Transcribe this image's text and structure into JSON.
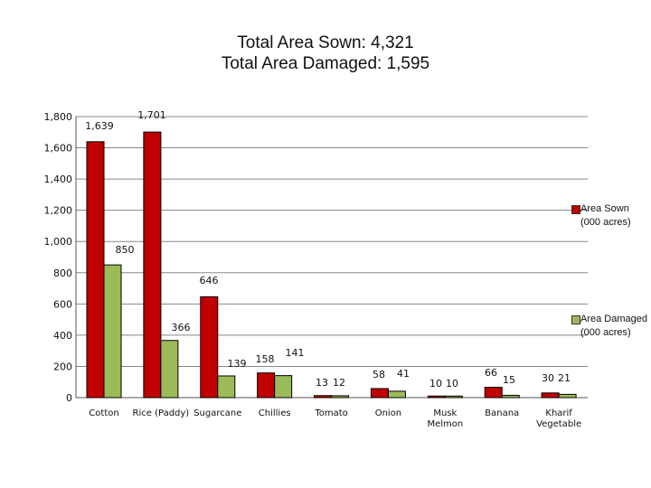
{
  "chart_data": {
    "type": "bar",
    "title_line1": "Total Area Sown: 4,321",
    "title_line2": "Total Area Damaged: 1,595",
    "categories": [
      "Cotton",
      "Rice (Paddy)",
      "Sugarcane",
      "Chillies",
      "Tomato",
      "Onion",
      "Musk Melmon",
      "Banana",
      "Kharif Vegetable"
    ],
    "series": [
      {
        "name": "Area Sown (000 acres)",
        "color": "#c00000",
        "values": [
          1639,
          1701,
          646,
          158,
          13,
          58,
          10,
          66,
          30
        ],
        "labels": [
          "1,639",
          "1,701",
          "646",
          "158",
          "13",
          "58",
          "10",
          "66",
          "30"
        ]
      },
      {
        "name": "Area Damaged (000 acres)",
        "color": "#9bbb59",
        "values": [
          850,
          366,
          139,
          141,
          12,
          41,
          10,
          15,
          21
        ],
        "labels": [
          "850",
          "366",
          "139",
          "141",
          "12",
          "41",
          "10",
          "15",
          "21"
        ]
      }
    ],
    "yticks": [
      "0",
      "200",
      "400",
      "600",
      "800",
      "1,000",
      "1,200",
      "1,400",
      "1,600",
      "1,800"
    ],
    "ylim": [
      0,
      1800
    ],
    "grid": true,
    "legend": "right"
  }
}
